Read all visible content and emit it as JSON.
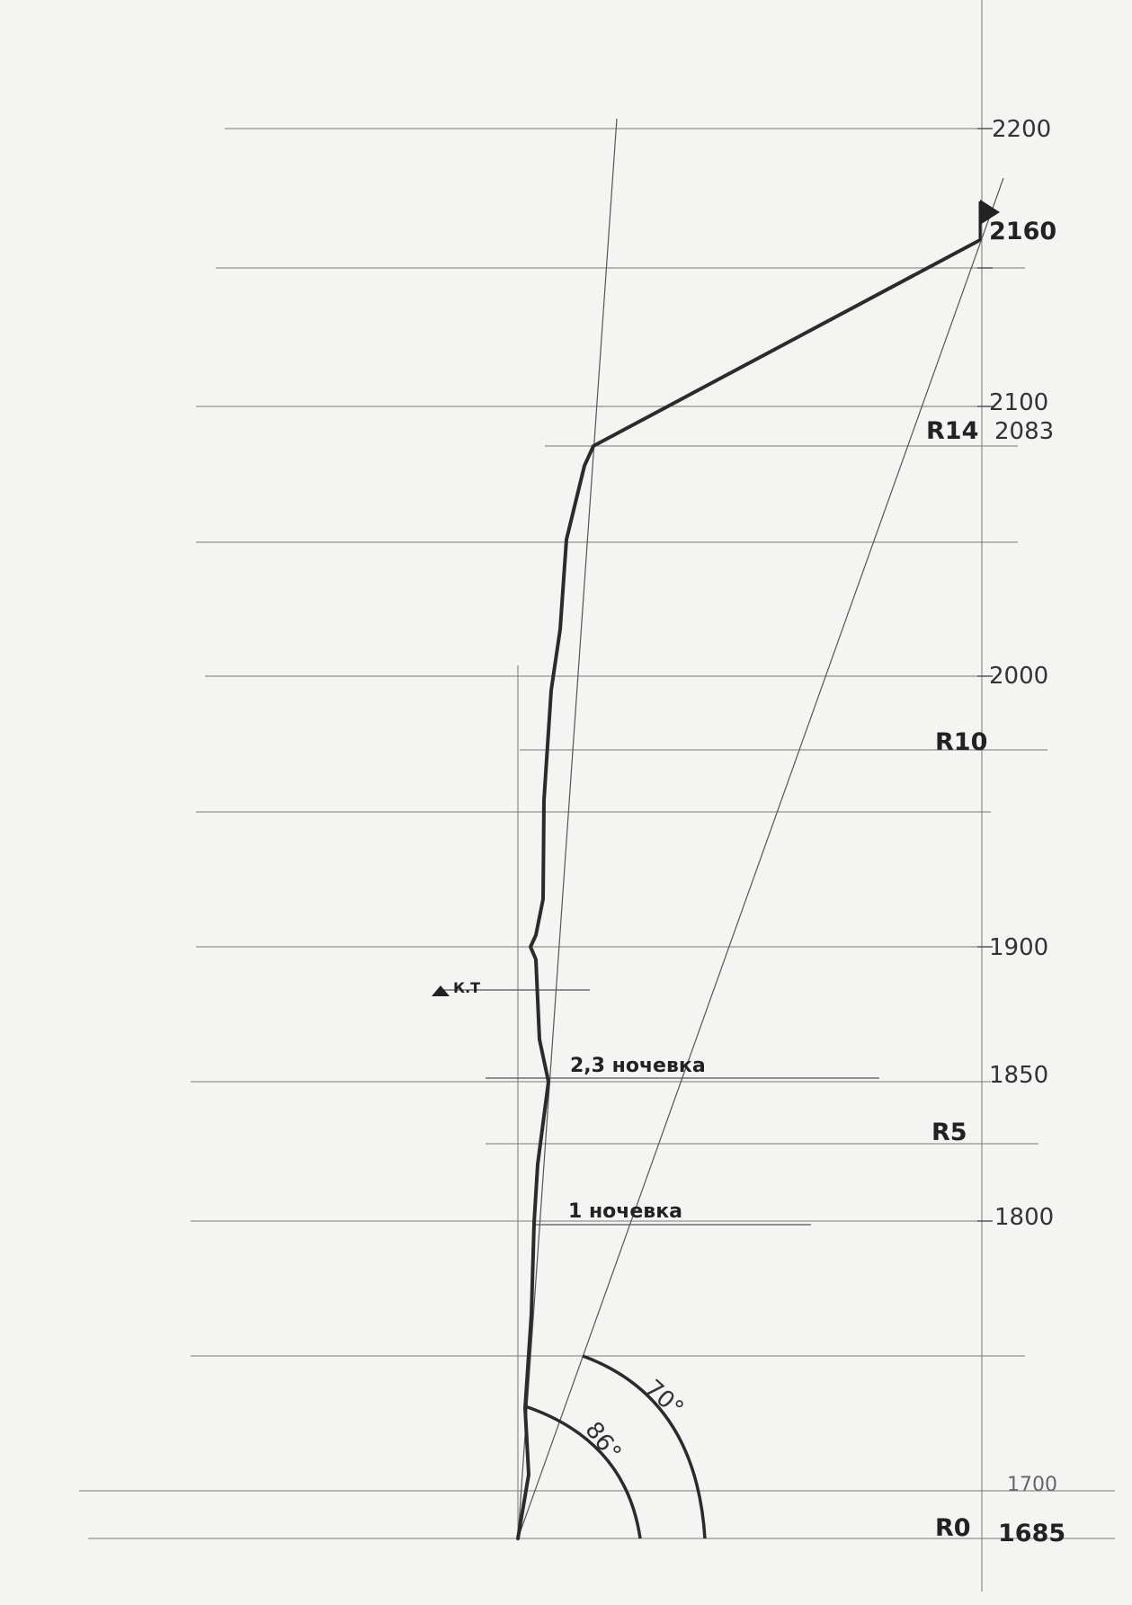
{
  "elevation_labels": {
    "e2200": "2200",
    "e2160": "2160",
    "e2100": "2100",
    "e2083": "2083",
    "e2000": "2000",
    "e1900": "1900",
    "e1850": "1850",
    "e1800": "1800",
    "e1700": "1700",
    "e1685": "1685"
  },
  "section_labels": {
    "r0": "R0",
    "r5": "R5",
    "r10": "R10",
    "r14": "R14"
  },
  "annotations": {
    "camp1": "1 ночевка",
    "camp23": "2,3 ночевка",
    "control_point": "К.Т",
    "angle_steep": "86°",
    "angle_shallow": "70°"
  },
  "colors": {
    "paper": "#f4f4f2",
    "ink": "#2b2b2b",
    "pencil": "#777777"
  }
}
